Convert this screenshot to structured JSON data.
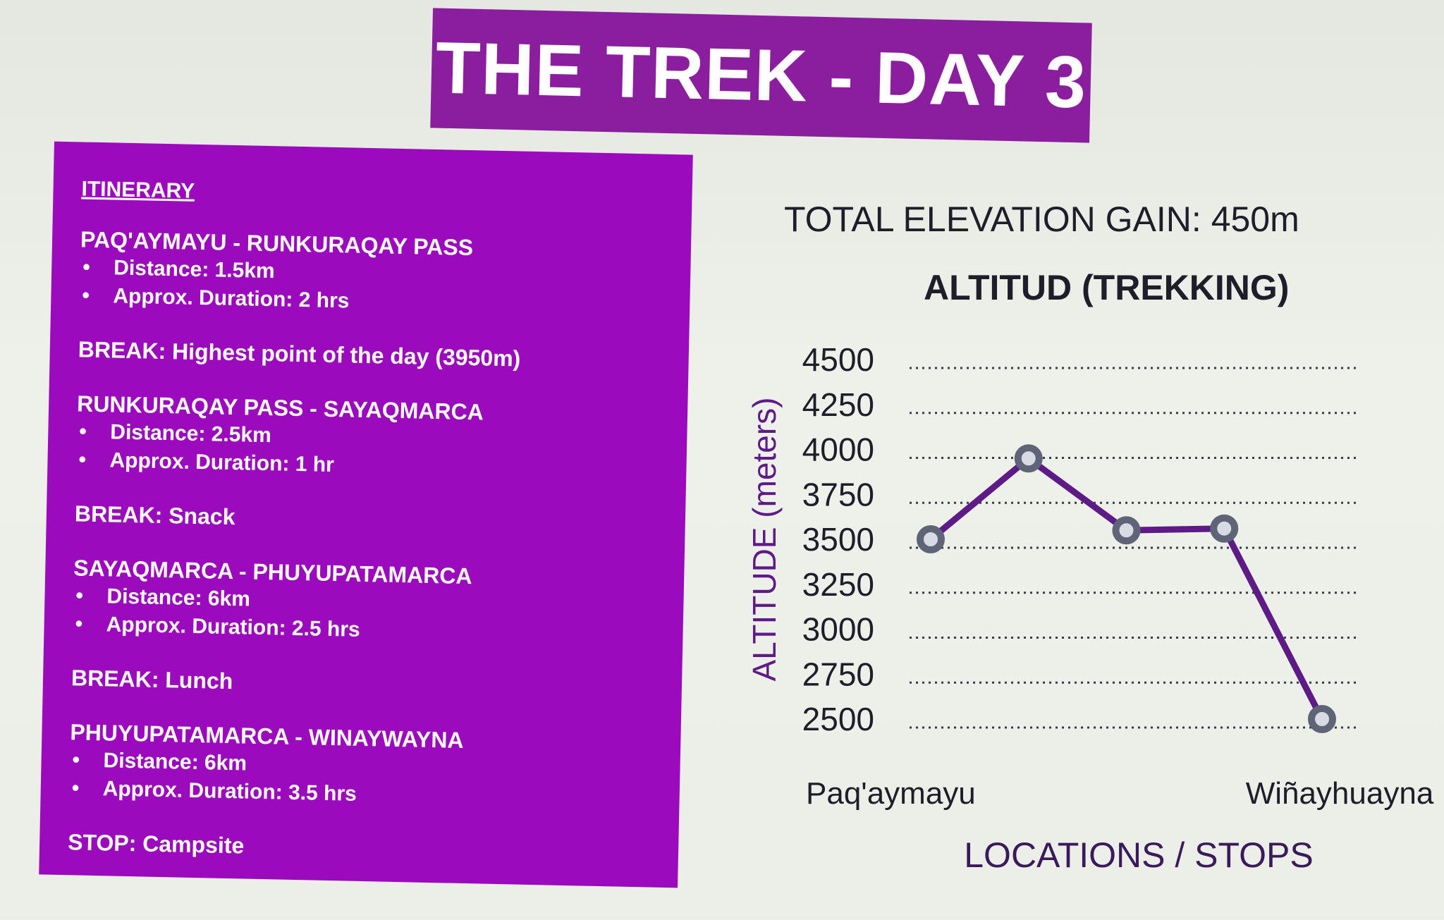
{
  "slide": {
    "title": "THE TREK - DAY 3",
    "itinerary_heading": "ITINERARY",
    "segments": [
      {
        "title": "PAQ'AYMAYU - RUNKURAQAY PASS",
        "distance": "Distance: 1.5km",
        "duration": "Approx. Duration: 2 hrs"
      },
      {
        "title": "RUNKURAQAY PASS - SAYAQMARCA",
        "distance": "Distance: 2.5km",
        "duration": "Approx. Duration: 1 hr"
      },
      {
        "title": "SAYAQMARCA - PHUYUPATAMARCA",
        "distance": "Distance: 6km",
        "duration": "Approx. Duration: 2.5 hrs"
      },
      {
        "title": "PHUYUPATAMARCA - WINAYWAYNA",
        "distance": "Distance: 6km",
        "duration": "Approx. Duration: 3.5 hrs"
      }
    ],
    "breaks": [
      "BREAK: Highest point of the day (3950m)",
      "BREAK: Snack",
      "BREAK: Lunch"
    ],
    "stop": "STOP: Campsite",
    "elevation_gain": "TOTAL ELEVATION GAIN: 450m"
  },
  "colors": {
    "title_bg": "#8a1e9e",
    "panel_bg": "#9b0bbd",
    "line": "#5e1a86",
    "marker_fill": "#5f6577",
    "text_dark": "#1e1e2a"
  },
  "chart_data": {
    "type": "line",
    "title": "ALTITUD (TREKKING)",
    "ylabel": "ALTITUDE (meters)",
    "xlabel": "LOCATIONS / STOPS",
    "ylim": [
      2500,
      4500
    ],
    "yticks": [
      4500,
      4250,
      4000,
      3750,
      3500,
      3250,
      3000,
      2750,
      2500
    ],
    "x_tick_labels": [
      "Paq'aymayu",
      "Wiñayhuayna"
    ],
    "grid": "dotted horizontal",
    "series": [
      {
        "values": [
          3500,
          3950,
          3550,
          3560,
          2500
        ]
      }
    ]
  }
}
